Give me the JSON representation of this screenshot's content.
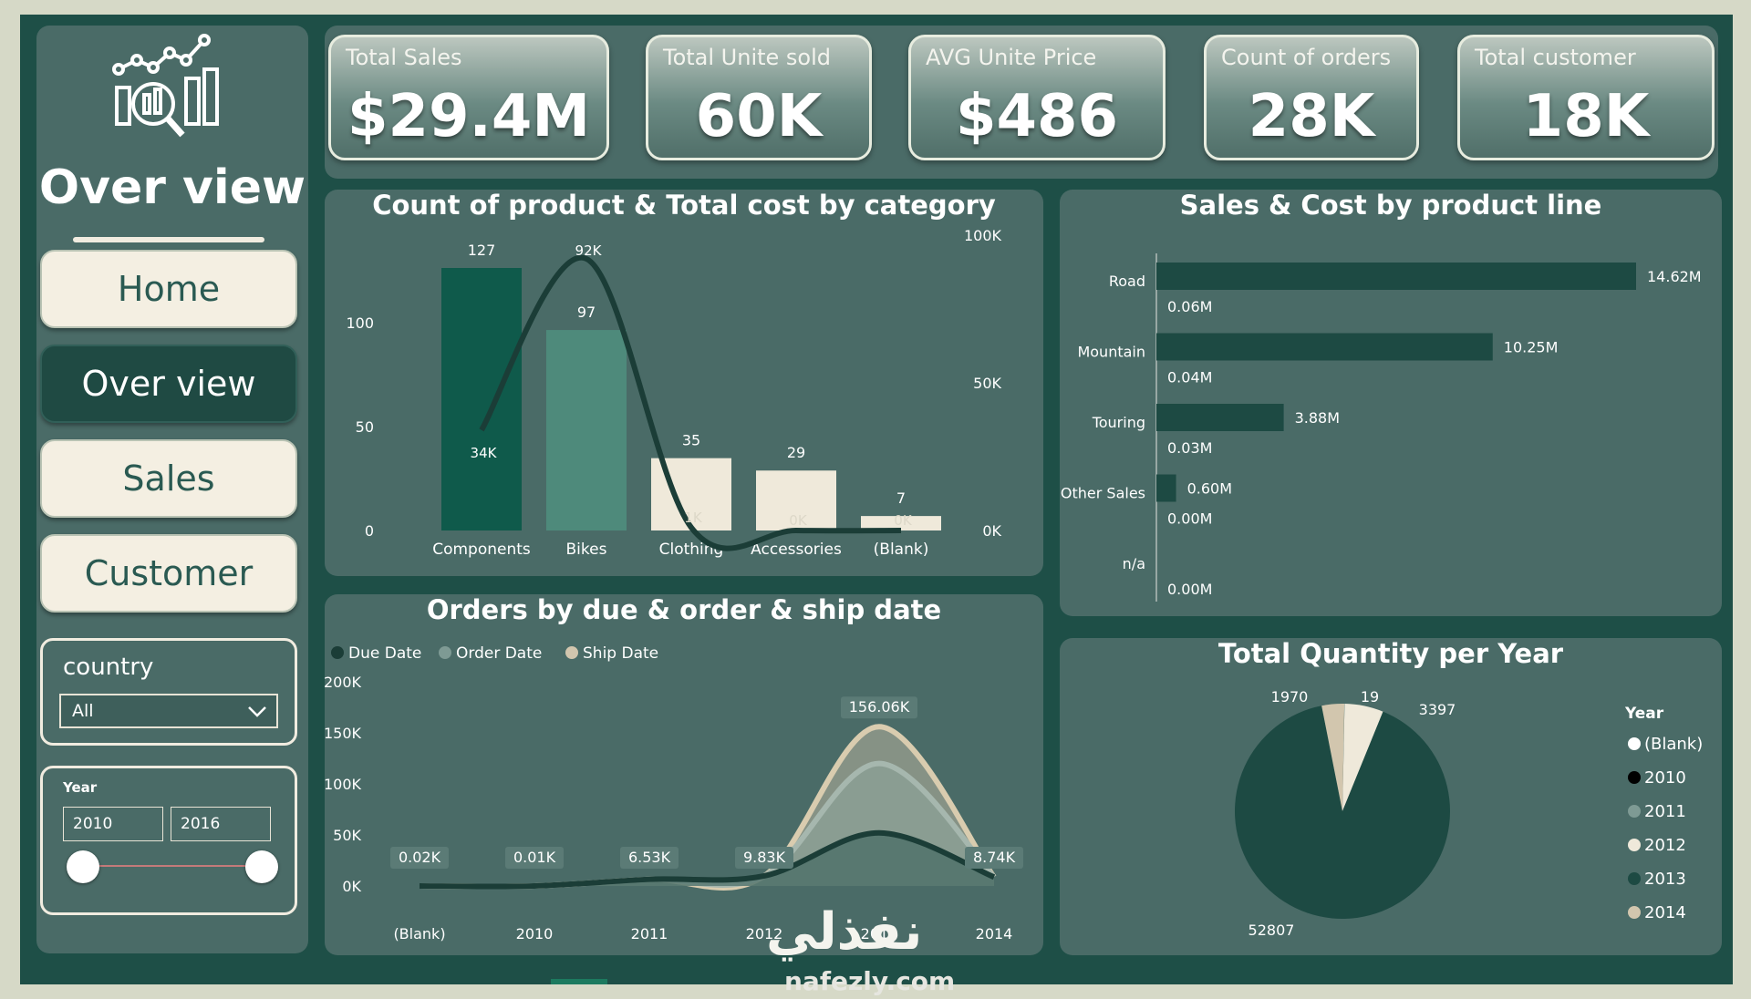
{
  "sidebar": {
    "title": "Over view",
    "nav": [
      "Home",
      "Over view",
      "Sales",
      "Customer"
    ],
    "country_filter": {
      "label": "country",
      "value": "All"
    },
    "year_filter": {
      "label": "Year",
      "from": "2010",
      "to": "2016"
    }
  },
  "kpis": [
    {
      "label": "Total Sales",
      "value": "$29.4M"
    },
    {
      "label": "Total Unite sold",
      "value": "60K"
    },
    {
      "label": "AVG Unite Price",
      "value": "$486"
    },
    {
      "label": "Count of orders",
      "value": "28K"
    },
    {
      "label": "Total customer",
      "value": "18K"
    }
  ],
  "colors": {
    "frame": "#1e4f47",
    "panel": "#4a6b67",
    "cream": "#f4efe2",
    "dark_series": "#0f5a4b",
    "mid_series": "#4e8a7b",
    "light_series": "#efe9da",
    "line_dark": "#1b3d37"
  },
  "watermark": {
    "text": "نفذلي",
    "sub": "nafezly.com"
  },
  "chart_data": [
    {
      "type": "bar",
      "title": "Count of product & Total cost by category",
      "categories": [
        "Components",
        "Bikes",
        "Clothing",
        "Accessories",
        "(Blank)"
      ],
      "series": [
        {
          "values": [
            127,
            97,
            35,
            29,
            7
          ],
          "labels": [
            "127",
            "97",
            "35",
            "29",
            "7"
          ]
        },
        {
          "values": [
            34000,
            92000,
            1000,
            0,
            0
          ],
          "labels": [
            "34K",
            "92K",
            "1K",
            "0K",
            "0K"
          ]
        }
      ],
      "y_left": {
        "ticks": [
          "0",
          "50",
          "100"
        ],
        "range": [
          0,
          127
        ]
      },
      "y_right": {
        "ticks": [
          "0K",
          "50K",
          "100K"
        ],
        "range": [
          0,
          100000
        ]
      }
    },
    {
      "type": "bar",
      "title": "Sales & Cost by product line",
      "categories": [
        "Road",
        "Mountain",
        "Touring",
        "Other Sales",
        "n/a"
      ],
      "series": [
        {
          "values": [
            14.62,
            10.25,
            3.88,
            0.6,
            0
          ],
          "labels": [
            "14.62M",
            "10.25M",
            "3.88M",
            "0.60M",
            ""
          ]
        },
        {
          "values": [
            0.06,
            0.04,
            0.03,
            0.0,
            0.0
          ],
          "labels": [
            "0.06M",
            "0.04M",
            "0.03M",
            "0.00M",
            "0.00M"
          ]
        }
      ],
      "xlim": [
        0,
        14.62
      ]
    },
    {
      "type": "area",
      "title": "Orders by due & order & ship date",
      "legend": [
        "Due Date",
        "Order Date",
        "Ship Date"
      ],
      "x": [
        "(Blank)",
        "2010",
        "2011",
        "2012",
        "2013",
        "2014"
      ],
      "ticks": [
        "0K",
        "50K",
        "100K",
        "150K",
        "200K"
      ],
      "ylim": [
        0,
        200000
      ],
      "series": [
        {
          "name": "Due Date",
          "values": [
            20,
            10,
            6530,
            9830,
            52000,
            8740
          ]
        },
        {
          "name": "Order Date",
          "values": [
            20,
            10,
            6530,
            9830,
            120000,
            8740
          ]
        },
        {
          "name": "Ship Date",
          "values": [
            20,
            10,
            6530,
            9830,
            156060,
            8740
          ]
        }
      ],
      "labels": [
        "0.02K",
        "0.01K",
        "6.53K",
        "9.83K",
        "156.06K",
        "8.74K"
      ]
    },
    {
      "type": "pie",
      "title": "Total Quantity per Year",
      "legend_title": "Year",
      "legend": [
        {
          "name": "(Blank)",
          "color": "#ffffff"
        },
        {
          "name": "2010",
          "color": "#000000"
        },
        {
          "name": "2011",
          "color": "#7e9a94"
        },
        {
          "name": "2012",
          "color": "#efe9da"
        },
        {
          "name": "2013",
          "color": "#1d4a43"
        },
        {
          "name": "2014",
          "color": "#d2c6ae"
        }
      ],
      "slices": [
        {
          "label": "3397",
          "value": 3397,
          "color": "#efe9da"
        },
        {
          "label": "52807",
          "value": 52807,
          "color": "#1d4a43"
        },
        {
          "label": "1970",
          "value": 1970,
          "color": "#d2c6ae"
        },
        {
          "label": "19",
          "value": 19,
          "color": "#7e9a94"
        }
      ]
    }
  ]
}
